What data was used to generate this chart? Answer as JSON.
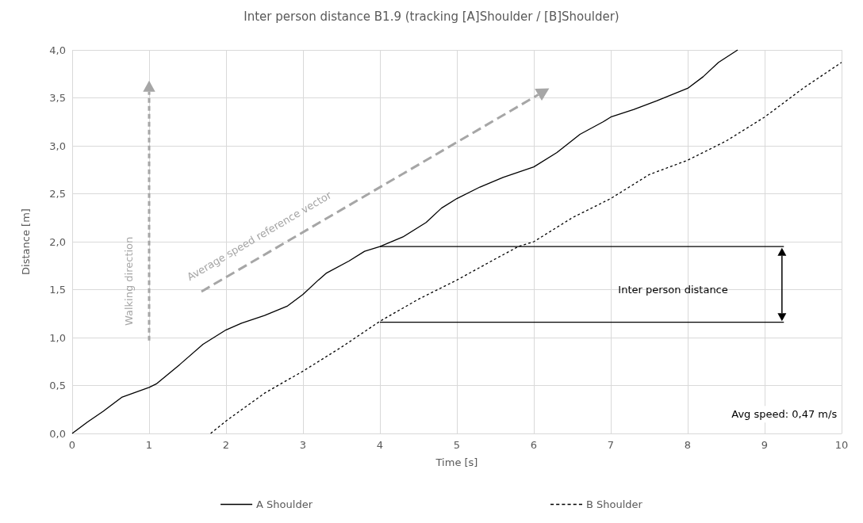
{
  "chart_data": {
    "type": "line",
    "title": "Inter person distance B1.9 (tracking [A]Shoulder / [B]Shoulder)",
    "xlabel": "Time [s]",
    "ylabel": "Distance [m]",
    "xlim": [
      0,
      10
    ],
    "xticks": [
      0,
      1,
      2,
      3,
      4,
      5,
      6,
      7,
      8,
      9,
      10
    ],
    "ylim": [
      0,
      4
    ],
    "yticks": [
      {
        "value": 0,
        "label": "0,0"
      },
      {
        "value": 0.5,
        "label": "0,5"
      },
      {
        "value": 1,
        "label": "1,0"
      },
      {
        "value": 1.5,
        "label": "1,5"
      },
      {
        "value": 2,
        "label": "2,0"
      },
      {
        "value": 2.5,
        "label": "2,5"
      },
      {
        "value": 3,
        "label": "3,0"
      },
      {
        "value": 3.5,
        "label": "3,5"
      },
      {
        "value": 4,
        "label": "4,0"
      }
    ],
    "grid": true,
    "legend": "bottom",
    "marker": "none",
    "series": [
      {
        "name": "A Shoulder",
        "color": "#000000",
        "line_style": "solid",
        "x": [
          0,
          0.2,
          0.4,
          0.65,
          1,
          1.1,
          1.4,
          1.7,
          2,
          2.2,
          2.5,
          2.8,
          3,
          3.2,
          3.3,
          3.6,
          3.8,
          4,
          4.3,
          4.6,
          4.8,
          5,
          5.3,
          5.6,
          6,
          6.3,
          6.6,
          6.9,
          7,
          7.3,
          7.6,
          8,
          8.2,
          8.4,
          8.65
        ],
        "values": [
          0,
          0.12,
          0.23,
          0.38,
          0.48,
          0.52,
          0.72,
          0.93,
          1.08,
          1.15,
          1.23,
          1.33,
          1.45,
          1.6,
          1.67,
          1.8,
          1.9,
          1.95,
          2.05,
          2.2,
          2.35,
          2.45,
          2.57,
          2.67,
          2.78,
          2.93,
          3.12,
          3.25,
          3.3,
          3.38,
          3.47,
          3.6,
          3.72,
          3.87,
          4
        ]
      },
      {
        "name": "B Shoulder",
        "color": "#000000",
        "line_style": "dashed",
        "x": [
          1.8,
          2,
          2.5,
          3,
          3.5,
          4,
          4.5,
          5,
          5.5,
          5.8,
          6,
          6.5,
          7,
          7.5,
          8,
          8.5,
          9,
          9.5,
          10
        ],
        "values": [
          0,
          0.13,
          0.42,
          0.65,
          0.9,
          1.17,
          1.4,
          1.6,
          1.82,
          1.95,
          2,
          2.25,
          2.45,
          2.7,
          2.85,
          3.05,
          3.3,
          3.6,
          3.87
        ]
      },
      {
        "color": "#000000",
        "line_style": "solid",
        "x": [
          4,
          9.25
        ],
        "values": [
          1.95,
          1.95
        ]
      },
      {
        "color": "#000000",
        "line_style": "solid",
        "x": [
          4,
          9.25
        ],
        "values": [
          1.16,
          1.16
        ]
      }
    ],
    "annotations": [
      "Walking direction",
      "Average speed reference vector",
      "Inter person distance",
      "Avg speed: 0,47 m/s"
    ]
  }
}
